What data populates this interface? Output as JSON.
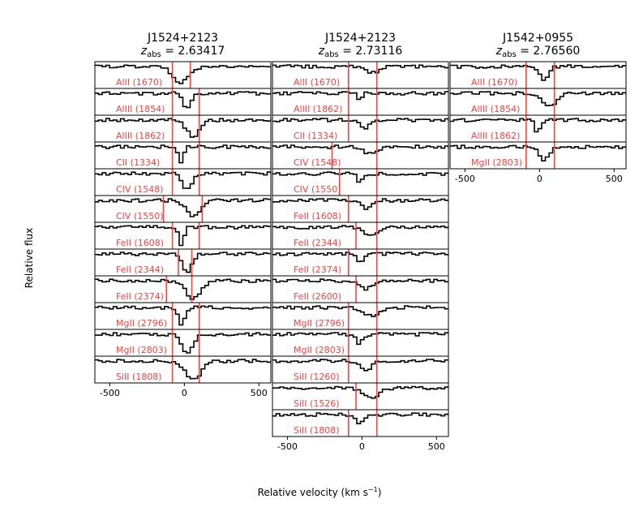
{
  "figure": {
    "ylabel": "Relative flux",
    "xlabel": "Relative velocity (km s",
    "xlabel_sup": "−1",
    "xlabel_end": ")"
  },
  "chart_data": {
    "type": "line",
    "xlim": [
      -600,
      580
    ],
    "xticks": [
      -500,
      0,
      500
    ],
    "tick_labels": [
      "-500",
      "0",
      "500"
    ],
    "line_color": "#000000",
    "marker_color": "#ff4040",
    "label_color": "#ff4040",
    "columns": [
      {
        "title_name": "J1524+2123",
        "z_prefix": "z",
        "z_sub": "abs",
        "z_value": " = 2.63417",
        "markers": [
          -80,
          100
        ],
        "panels": [
          {
            "label": "AlII (1670)",
            "markers": [
              -80,
              40
            ]
          },
          {
            "label": "AlIII (1854)"
          },
          {
            "label": "AlIII (1862)"
          },
          {
            "label": "CII (1334)"
          },
          {
            "label": "CIV (1548)"
          },
          {
            "label": "CIV (1550)",
            "markers": [
              -140,
              120
            ]
          },
          {
            "label": "FeII (1608)"
          },
          {
            "label": "FeII (2344)",
            "markers": [
              -40,
              50
            ]
          },
          {
            "label": "FeII (2374)",
            "markers": [
              -120,
              50
            ]
          },
          {
            "label": "MgII (2796)"
          },
          {
            "label": "MgII (2803)"
          },
          {
            "label": "SiII (1808)"
          }
        ]
      },
      {
        "title_name": "J1524+2123",
        "z_prefix": "z",
        "z_sub": "abs",
        "z_value": " = 2.73116",
        "markers": [
          -90,
          100
        ],
        "panels": [
          {
            "label": "AlII (1670)"
          },
          {
            "label": "AlIII (1862)"
          },
          {
            "label": "CII (1334)"
          },
          {
            "label": "CIV (1548)",
            "markers": [
              -200,
              100
            ]
          },
          {
            "label": "CIV (1550)",
            "markers": [
              -150,
              100
            ]
          },
          {
            "label": "FeII (1608)"
          },
          {
            "label": "FeII (2344)",
            "markers": [
              -40,
              100
            ]
          },
          {
            "label": "FeII (2374)"
          },
          {
            "label": "FeII (2600)",
            "markers": [
              -40,
              100
            ]
          },
          {
            "label": "MgII (2796)"
          },
          {
            "label": "MgII (2803)"
          },
          {
            "label": "SiII (1260)"
          },
          {
            "label": "SiII (1526)",
            "markers": [
              -40,
              100
            ]
          },
          {
            "label": "SiII (1808)"
          }
        ]
      },
      {
        "title_name": "J1542+0955",
        "z_prefix": "z",
        "z_sub": "abs",
        "z_value": " = 2.76560",
        "markers": [
          -90,
          100
        ],
        "panels": [
          {
            "label": "AlII (1670)"
          },
          {
            "label": "AlIII (1854)"
          },
          {
            "label": "AlIII (1862)"
          },
          {
            "label": "MgII (2803)"
          }
        ]
      }
    ]
  }
}
